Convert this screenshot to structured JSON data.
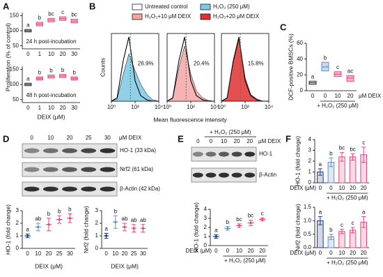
{
  "chart_data": [
    {
      "type": "box",
      "panel": "A",
      "ylabel": "Proliferation (% of control)",
      "annotation": "24 h post-incubation",
      "categories": [
        "0",
        "1",
        "10",
        "20",
        "30"
      ],
      "values": [
        100,
        122,
        135,
        140,
        132
      ],
      "q1": [
        96,
        116,
        129,
        134,
        126
      ],
      "q3": [
        104,
        128,
        141,
        146,
        138
      ],
      "letters": [
        "a",
        "b",
        "bc",
        "c",
        "bc"
      ],
      "colors": [
        "#222222",
        "#e8457a",
        "#e8457a",
        "#e8457a",
        "#e8457a"
      ],
      "ylim": [
        40,
        160
      ],
      "yticks": [
        50,
        100,
        150
      ]
    },
    {
      "type": "box",
      "annotation": "48 h post-incubation",
      "xlabel": "DEIX (μM)",
      "categories": [
        "0",
        "1",
        "10",
        "20",
        "30"
      ],
      "values": [
        100,
        120,
        126,
        128,
        120
      ],
      "q1": [
        96,
        115,
        121,
        123,
        115
      ],
      "q3": [
        104,
        125,
        131,
        133,
        125
      ],
      "letters": [
        "a",
        "b",
        "b",
        "b",
        "b"
      ],
      "colors": [
        "#222222",
        "#e8457a",
        "#e8457a",
        "#e8457a",
        "#e8457a"
      ],
      "ylim": [
        40,
        160
      ],
      "yticks": [
        50,
        100,
        150
      ]
    },
    {
      "type": "flow",
      "panel": "B",
      "ylabel": "Counts",
      "xlabel": "Mean fluorescence intensity",
      "log_x": true,
      "legend": [
        {
          "name": "Untreated control",
          "color": "#ffffff"
        },
        {
          "name": "H₂O₂ (250 μM)",
          "color": "#7ec8e3"
        },
        {
          "name": "H₂O₂+10 μM DEIX",
          "color": "#f4a6a6"
        },
        {
          "name": "H₂O₂+20 μM DEIX",
          "color": "#e03030"
        }
      ],
      "x": [
        1,
        3,
        10,
        30,
        100,
        300,
        1000,
        3000,
        10000
      ],
      "xlim": [
        1,
        10000
      ],
      "xticks": [
        {
          "value": 1,
          "label": "10⁰"
        },
        {
          "value": 100,
          "label": "10²"
        },
        {
          "value": 10000,
          "label": "10⁴"
        }
      ],
      "ylim": [
        0,
        100
      ],
      "gate": 40,
      "panels": [
        {
          "annotation": "26.9%",
          "series": [
            {
              "color": "#7ec8e3",
              "values": [
                0,
                3,
                40,
                70,
                45,
                25,
                10,
                2,
                0
              ]
            },
            {
              "color": "#ffffff",
              "values": [
                0,
                5,
                60,
                95,
                30,
                8,
                2,
                0,
                0
              ]
            }
          ]
        },
        {
          "annotation": "20.4%",
          "series": [
            {
              "color": "#f4a6a6",
              "values": [
                0,
                4,
                50,
                82,
                40,
                15,
                5,
                1,
                0
              ]
            },
            {
              "color": "#ffffff",
              "values": [
                0,
                5,
                60,
                95,
                30,
                8,
                2,
                0,
                0
              ]
            }
          ]
        },
        {
          "annotation": "15.8%",
          "series": [
            {
              "color": "#e03030",
              "values": [
                0,
                5,
                58,
                92,
                35,
                10,
                3,
                0,
                0
              ]
            },
            {
              "color": "#ffffff",
              "values": [
                0,
                5,
                60,
                95,
                30,
                8,
                2,
                0,
                0
              ]
            }
          ]
        }
      ]
    },
    {
      "type": "box",
      "panel": "C",
      "ylabel": "DCF-positive BMSCs (%)",
      "xlabel": "μM DEIX",
      "group_label": "+ H₂O₂ (250 μM)",
      "categories": [
        "0",
        "0",
        "10",
        "20"
      ],
      "values": [
        10,
        30,
        21,
        16
      ],
      "q1": [
        8,
        25,
        18,
        12
      ],
      "q3": [
        12,
        36,
        24,
        19
      ],
      "letters": [
        "a",
        "b",
        "c",
        "ac"
      ],
      "colors": [
        "#222222",
        "#5b8fd0",
        "#e8457a",
        "#e8457a"
      ],
      "ylim": [
        0,
        60
      ],
      "yticks": [
        0,
        20,
        40,
        60
      ]
    },
    {
      "type": "errorbar",
      "panel": "D",
      "ylabel": "HO-1 (fold change)",
      "xlabel": "DEIX (μM)",
      "categories": [
        "0",
        "10",
        "20",
        "25",
        "30"
      ],
      "values": [
        1.0,
        1.7,
        1.9,
        2.3,
        2.4
      ],
      "errors": [
        0.15,
        0.3,
        0.5,
        0.3,
        0.35
      ],
      "letters": [
        "a",
        "ab",
        "b",
        "b",
        "b"
      ],
      "colors": [
        "#1f3a8a",
        "#5b8fd0",
        "#e8457a",
        "#e8457a",
        "#e8457a"
      ],
      "ylim": [
        0,
        3
      ],
      "yticks": [
        0,
        1,
        2,
        3
      ]
    },
    {
      "type": "errorbar",
      "ylabel": "Nrf2 (fold change)",
      "xlabel": "DEIX (μM)",
      "categories": [
        "0",
        "10",
        "20",
        "25",
        "30"
      ],
      "values": [
        1.0,
        2.1,
        1.7,
        1.6,
        1.6
      ],
      "errors": [
        0.2,
        0.5,
        0.3,
        0.3,
        0.3
      ],
      "letters": [
        "a",
        "b",
        "ab",
        "ab",
        "ab"
      ],
      "colors": [
        "#1f3a8a",
        "#5b8fd0",
        "#e8457a",
        "#e8457a",
        "#e8457a"
      ],
      "ylim": [
        0,
        3
      ],
      "yticks": [
        0,
        1,
        2,
        3
      ]
    },
    {
      "type": "errorbar",
      "panel": "E",
      "ylabel": "HO-1 (fold change)",
      "xlabel": "DEIX (μM)",
      "group_label": "+ H₂O₂ (250 μM)",
      "categories": [
        "0",
        "0",
        "10",
        "20",
        "20"
      ],
      "values": [
        1.0,
        1.9,
        2.2,
        2.5,
        2.9
      ],
      "errors": [
        0.2,
        0.2,
        0.2,
        0.3,
        0.15
      ],
      "letters": [
        "a",
        "b",
        "bc",
        "bc",
        "c"
      ],
      "colors": [
        "#1f3a8a",
        "#5b8fd0",
        "#e8457a",
        "#e8457a",
        "#e8457a"
      ],
      "ylim": [
        0,
        4
      ],
      "yticks": [
        0,
        1,
        2,
        3,
        4
      ]
    },
    {
      "type": "bar",
      "panel": "F",
      "ylabel": "HO-1 (fold change)",
      "xlabel": "DEIX (μM)",
      "group_label": "+ H₂O₂ (250 μM)",
      "categories": [
        "0",
        "0",
        "10",
        "20",
        "20"
      ],
      "values": [
        1.0,
        1.9,
        2.4,
        2.4,
        2.6
      ],
      "errors": [
        0.3,
        0.4,
        0.4,
        0.3,
        0.7
      ],
      "letters": [
        "a",
        "b",
        "bc",
        "bc",
        "c"
      ],
      "colors": [
        "#1f3a8a",
        "#5b8fd0",
        "#e8457a",
        "#e8457a",
        "#e8457a"
      ],
      "ylim": [
        0,
        4
      ],
      "yticks": [
        0,
        1,
        2,
        3,
        4
      ]
    },
    {
      "type": "bar",
      "ylabel": "Nrf2 (fold change)",
      "xlabel": "DEIX (μM)",
      "group_label": "+ H₂O₂ (250 μM)",
      "categories": [
        "0",
        "0",
        "10",
        "20",
        "20"
      ],
      "values": [
        1.0,
        0.4,
        0.6,
        0.65,
        0.95
      ],
      "errors": [
        0.15,
        0.1,
        0.08,
        0.1,
        0.2
      ],
      "letters": [
        "a",
        "b",
        "c",
        "c",
        "a"
      ],
      "colors": [
        "#1f3a8a",
        "#5b8fd0",
        "#e8457a",
        "#e8457a",
        "#e8457a"
      ],
      "ylim": [
        0,
        1.5
      ],
      "yticks": [
        {
          "value": 0,
          "label": "0.0"
        },
        0.5,
        {
          "value": 1,
          "label": "1.0"
        },
        1.5
      ]
    }
  ],
  "blots": [
    {
      "lanes": [
        "0",
        "10",
        "20",
        "25",
        "30"
      ],
      "unit": "μM DEIX",
      "rows": [
        "HO-1 (33 kDa)",
        "Nrf2 (61 kDa)",
        "β-Actin (42 kDa)"
      ]
    },
    {
      "header": "+ H₂O₂ (250 μM)",
      "lanes": [
        "0",
        "0",
        "10",
        "20",
        "20"
      ],
      "unit": "μM DEIX",
      "rows": [
        "HO-1",
        "β-Actin"
      ]
    }
  ]
}
